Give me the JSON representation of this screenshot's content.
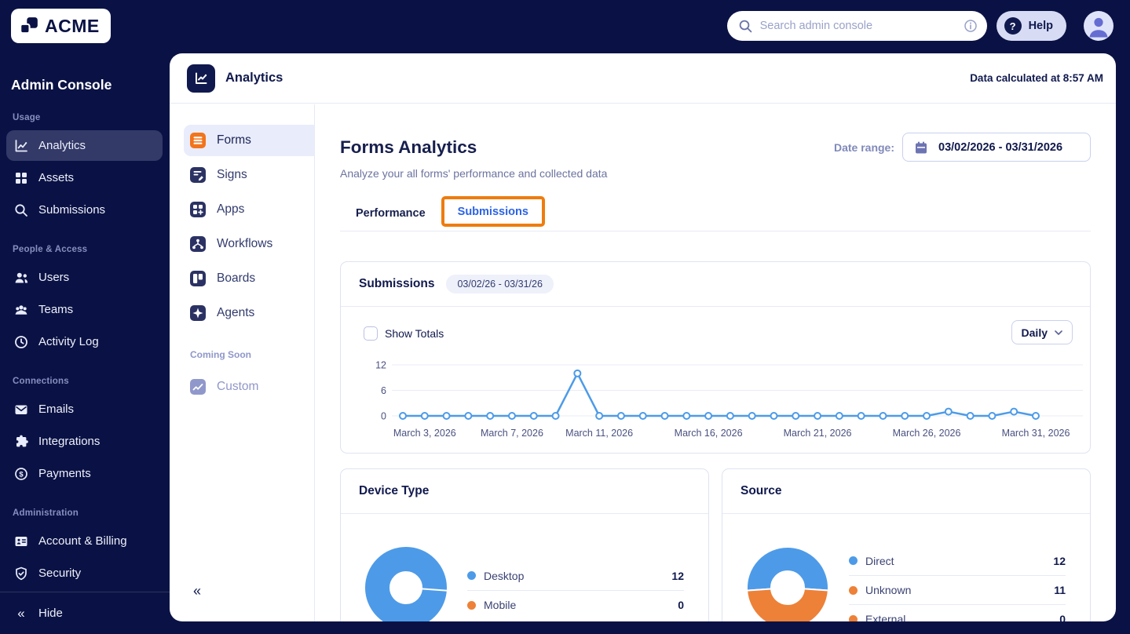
{
  "colors": {
    "navy_bg": "#0a1245",
    "chart_blue": "#4d9be8",
    "chart_orange": "#ed8138",
    "annotation_orange": "#ee7c0f",
    "active_tab_blue": "#2c64e4",
    "forms_icon_orange": "#f2741c"
  },
  "icons": {
    "hide": "«",
    "collapse": "«",
    "help": "?",
    "payments_dollar": "$"
  },
  "topbar": {
    "logo_text": "ACME",
    "search_placeholder": "Search admin console",
    "help_label": "Help"
  },
  "sidebar": {
    "title": "Admin Console",
    "sections": [
      {
        "label": "Usage",
        "items": [
          {
            "label": "Analytics",
            "icon": "analytics-icon",
            "active": true
          },
          {
            "label": "Assets",
            "icon": "assets-icon",
            "active": false
          },
          {
            "label": "Submissions",
            "icon": "search-icon",
            "active": false
          }
        ]
      },
      {
        "label": "People & Access",
        "items": [
          {
            "label": "Users",
            "icon": "users-icon"
          },
          {
            "label": "Teams",
            "icon": "teams-icon"
          },
          {
            "label": "Activity Log",
            "icon": "clock-icon"
          }
        ]
      },
      {
        "label": "Connections",
        "items": [
          {
            "label": "Emails",
            "icon": "envelope-icon"
          },
          {
            "label": "Integrations",
            "icon": "puzzle-icon"
          },
          {
            "label": "Payments",
            "icon": "payments-icon"
          }
        ]
      },
      {
        "label": "Administration",
        "items": [
          {
            "label": "Account & Billing",
            "icon": "id-card-icon"
          },
          {
            "label": "Security",
            "icon": "shield-icon"
          }
        ]
      }
    ],
    "hide_label": "Hide"
  },
  "panel": {
    "header": {
      "title": "Analytics",
      "status": "Data calculated at 8:57 AM"
    },
    "subnav": {
      "items": [
        {
          "label": "Forms",
          "active": true
        },
        {
          "label": "Signs",
          "active": false
        },
        {
          "label": "Apps",
          "active": false
        },
        {
          "label": "Workflows",
          "active": false
        },
        {
          "label": "Boards",
          "active": false
        },
        {
          "label": "Agents",
          "active": false
        }
      ],
      "coming_soon_label": "Coming Soon",
      "coming_soon_items": [
        {
          "label": "Custom"
        }
      ]
    },
    "content": {
      "title": "Forms Analytics",
      "subtitle": "Analyze your all forms' performance and collected data",
      "date_range_label": "Date range:",
      "date_range_value": "03/02/2026 - 03/31/2026",
      "tabs": [
        {
          "label": "Performance",
          "active": false
        },
        {
          "label": "Submissions",
          "active": true,
          "highlighted": true
        }
      ]
    }
  },
  "chart_data": [
    {
      "type": "line",
      "title": "Submissions",
      "badge": "03/02/26 - 03/31/26",
      "controls": {
        "show_totals_label": "Show Totals",
        "show_totals_checked": false,
        "interval_value": "Daily"
      },
      "x": [
        "March 2, 2026",
        "March 3, 2026",
        "March 4, 2026",
        "March 5, 2026",
        "March 6, 2026",
        "March 7, 2026",
        "March 8, 2026",
        "March 9, 2026",
        "March 10, 2026",
        "March 11, 2026",
        "March 12, 2026",
        "March 13, 2026",
        "March 14, 2026",
        "March 15, 2026",
        "March 16, 2026",
        "March 17, 2026",
        "March 18, 2026",
        "March 19, 2026",
        "March 20, 2026",
        "March 21, 2026",
        "March 22, 2026",
        "March 23, 2026",
        "March 24, 2026",
        "March 25, 2026",
        "March 26, 2026",
        "March 27, 2026",
        "March 28, 2026",
        "March 29, 2026",
        "March 30, 2026",
        "March 31, 2026"
      ],
      "values": [
        0,
        0,
        0,
        0,
        0,
        0,
        0,
        0,
        10,
        0,
        0,
        0,
        0,
        0,
        0,
        0,
        0,
        0,
        0,
        0,
        0,
        0,
        0,
        0,
        0,
        1,
        0,
        0,
        1,
        0
      ],
      "x_tick_indices": [
        1,
        5,
        9,
        14,
        19,
        24,
        29
      ],
      "y_ticks": [
        0,
        6,
        12
      ],
      "ylim": [
        0,
        12
      ],
      "grid": "horizontal",
      "legend_position": "none",
      "line_color": "#4d9be8"
    },
    {
      "type": "donut",
      "title": "Device Type",
      "slices": [
        {
          "label": "Desktop",
          "value": 12,
          "color": "#4d9be8"
        },
        {
          "label": "Mobile",
          "value": 0,
          "color": "#ed8138"
        }
      ],
      "start_angle": 266,
      "divider_angle": 94,
      "legend_position": "right"
    },
    {
      "type": "donut",
      "title": "Source",
      "slices": [
        {
          "label": "Direct",
          "value": 12,
          "color": "#4d9be8"
        },
        {
          "label": "Unknown",
          "value": 11,
          "color": "#ed8138"
        },
        {
          "label": "External",
          "value": 0,
          "color": "#ed8138"
        }
      ],
      "start_angle": 266,
      "legend_position": "right"
    }
  ]
}
